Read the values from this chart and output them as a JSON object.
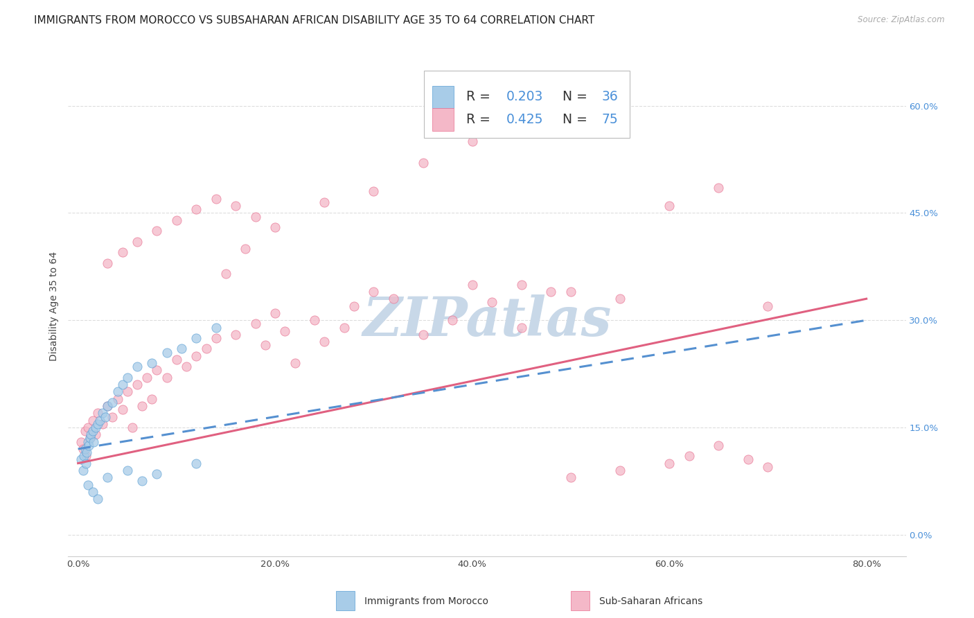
{
  "title": "IMMIGRANTS FROM MOROCCO VS SUBSAHARAN AFRICAN DISABILITY AGE 35 TO 64 CORRELATION CHART",
  "source": "Source: ZipAtlas.com",
  "ylabel": "Disability Age 35 to 64",
  "watermark": "ZIPatlas",
  "watermark_color": "#c8d8e8",
  "morocco_color": "#a8cce8",
  "subsaharan_color": "#f4b8c8",
  "morocco_edge": "#5a9fd4",
  "subsaharan_edge": "#e87090",
  "grid_color": "#dddddd",
  "background_color": "#ffffff",
  "title_fontsize": 11,
  "axis_label_fontsize": 10,
  "tick_fontsize": 9.5,
  "legend_r_color": "#4a90d9",
  "axis_tick_color": "#4a90d9",
  "morocco_x": [
    0.3,
    0.5,
    0.6,
    0.7,
    0.8,
    0.9,
    1.0,
    1.1,
    1.2,
    1.3,
    1.5,
    1.6,
    1.8,
    2.0,
    2.2,
    2.5,
    2.8,
    3.0,
    3.5,
    4.0,
    4.5,
    5.0,
    6.0,
    7.5,
    9.0,
    10.5,
    12.0,
    14.0,
    1.0,
    1.5,
    2.0,
    3.0,
    5.0,
    6.5,
    8.0,
    12.0
  ],
  "morocco_y": [
    10.5,
    9.0,
    11.0,
    12.0,
    10.0,
    11.5,
    13.0,
    12.5,
    13.5,
    14.0,
    14.5,
    13.0,
    15.0,
    15.5,
    16.0,
    17.0,
    16.5,
    18.0,
    18.5,
    20.0,
    21.0,
    22.0,
    23.5,
    24.0,
    25.5,
    26.0,
    27.5,
    29.0,
    7.0,
    6.0,
    5.0,
    8.0,
    9.0,
    7.5,
    8.5,
    10.0
  ],
  "subsaharan_x": [
    0.3,
    0.5,
    0.7,
    0.8,
    1.0,
    1.2,
    1.5,
    1.8,
    2.0,
    2.5,
    3.0,
    3.5,
    4.0,
    4.5,
    5.0,
    5.5,
    6.0,
    6.5,
    7.0,
    7.5,
    8.0,
    9.0,
    10.0,
    11.0,
    12.0,
    13.0,
    14.0,
    15.0,
    16.0,
    17.0,
    18.0,
    19.0,
    20.0,
    21.0,
    22.0,
    24.0,
    25.0,
    27.0,
    28.0,
    30.0,
    32.0,
    35.0,
    38.0,
    40.0,
    42.0,
    45.0,
    48.0,
    50.0,
    55.0,
    60.0,
    62.0,
    65.0,
    68.0,
    70.0,
    3.0,
    4.5,
    6.0,
    8.0,
    10.0,
    12.0,
    14.0,
    16.0,
    18.0,
    20.0,
    25.0,
    30.0,
    35.0,
    40.0,
    45.0,
    50.0,
    55.0,
    60.0,
    65.0,
    70.0,
    45.0
  ],
  "subsaharan_y": [
    13.0,
    12.0,
    14.5,
    11.0,
    15.0,
    13.5,
    16.0,
    14.0,
    17.0,
    15.5,
    18.0,
    16.5,
    19.0,
    17.5,
    20.0,
    15.0,
    21.0,
    18.0,
    22.0,
    19.0,
    23.0,
    22.0,
    24.5,
    23.5,
    25.0,
    26.0,
    27.5,
    36.5,
    28.0,
    40.0,
    29.5,
    26.5,
    31.0,
    28.5,
    24.0,
    30.0,
    27.0,
    29.0,
    32.0,
    34.0,
    33.0,
    28.0,
    30.0,
    35.0,
    32.5,
    29.0,
    34.0,
    8.0,
    9.0,
    10.0,
    11.0,
    12.5,
    10.5,
    9.5,
    38.0,
    39.5,
    41.0,
    42.5,
    44.0,
    45.5,
    47.0,
    46.0,
    44.5,
    43.0,
    46.5,
    48.0,
    52.0,
    55.0,
    35.0,
    34.0,
    33.0,
    46.0,
    48.5,
    32.0,
    57.0
  ],
  "xlim": [
    -1,
    84
  ],
  "ylim": [
    -3,
    67
  ],
  "x_tick_vals": [
    0,
    20,
    40,
    60,
    80
  ],
  "x_tick_labels": [
    "0.0%",
    "20.0%",
    "40.0%",
    "60.0%",
    "80.0%"
  ],
  "y_tick_vals": [
    0,
    15,
    30,
    45,
    60
  ],
  "y_tick_labels": [
    "0.0%",
    "15.0%",
    "30.0%",
    "45.0%",
    "60.0%"
  ]
}
